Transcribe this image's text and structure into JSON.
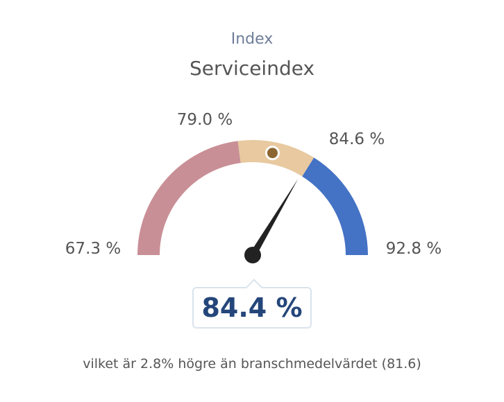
{
  "header": {
    "subtitle": "Index",
    "title": "Serviceindex"
  },
  "gauge": {
    "value_label": "84.4 %",
    "footer": "vilket är 2.8% högre än branschmedelvärdet (81.6)",
    "colors": {
      "low": "#c98f96",
      "mid": "#e8c9a0",
      "high": "#4472c4",
      "needle": "#222222",
      "marker": "#8b6630",
      "value_text": "#24467a"
    }
  },
  "chart_data": {
    "type": "gauge",
    "min": 67.3,
    "max": 92.8,
    "value": 84.4,
    "benchmark": 81.6,
    "bands": [
      {
        "from": 67.3,
        "to": 79.0,
        "color": "#c98f96"
      },
      {
        "from": 79.0,
        "to": 84.6,
        "color": "#e8c9a0"
      },
      {
        "from": 84.6,
        "to": 92.8,
        "color": "#4472c4"
      }
    ],
    "tick_labels": [
      "67.3 %",
      "79.0 %",
      "84.6 %",
      "92.8 %"
    ],
    "tick_values": [
      67.3,
      79.0,
      84.6,
      92.8
    ]
  }
}
